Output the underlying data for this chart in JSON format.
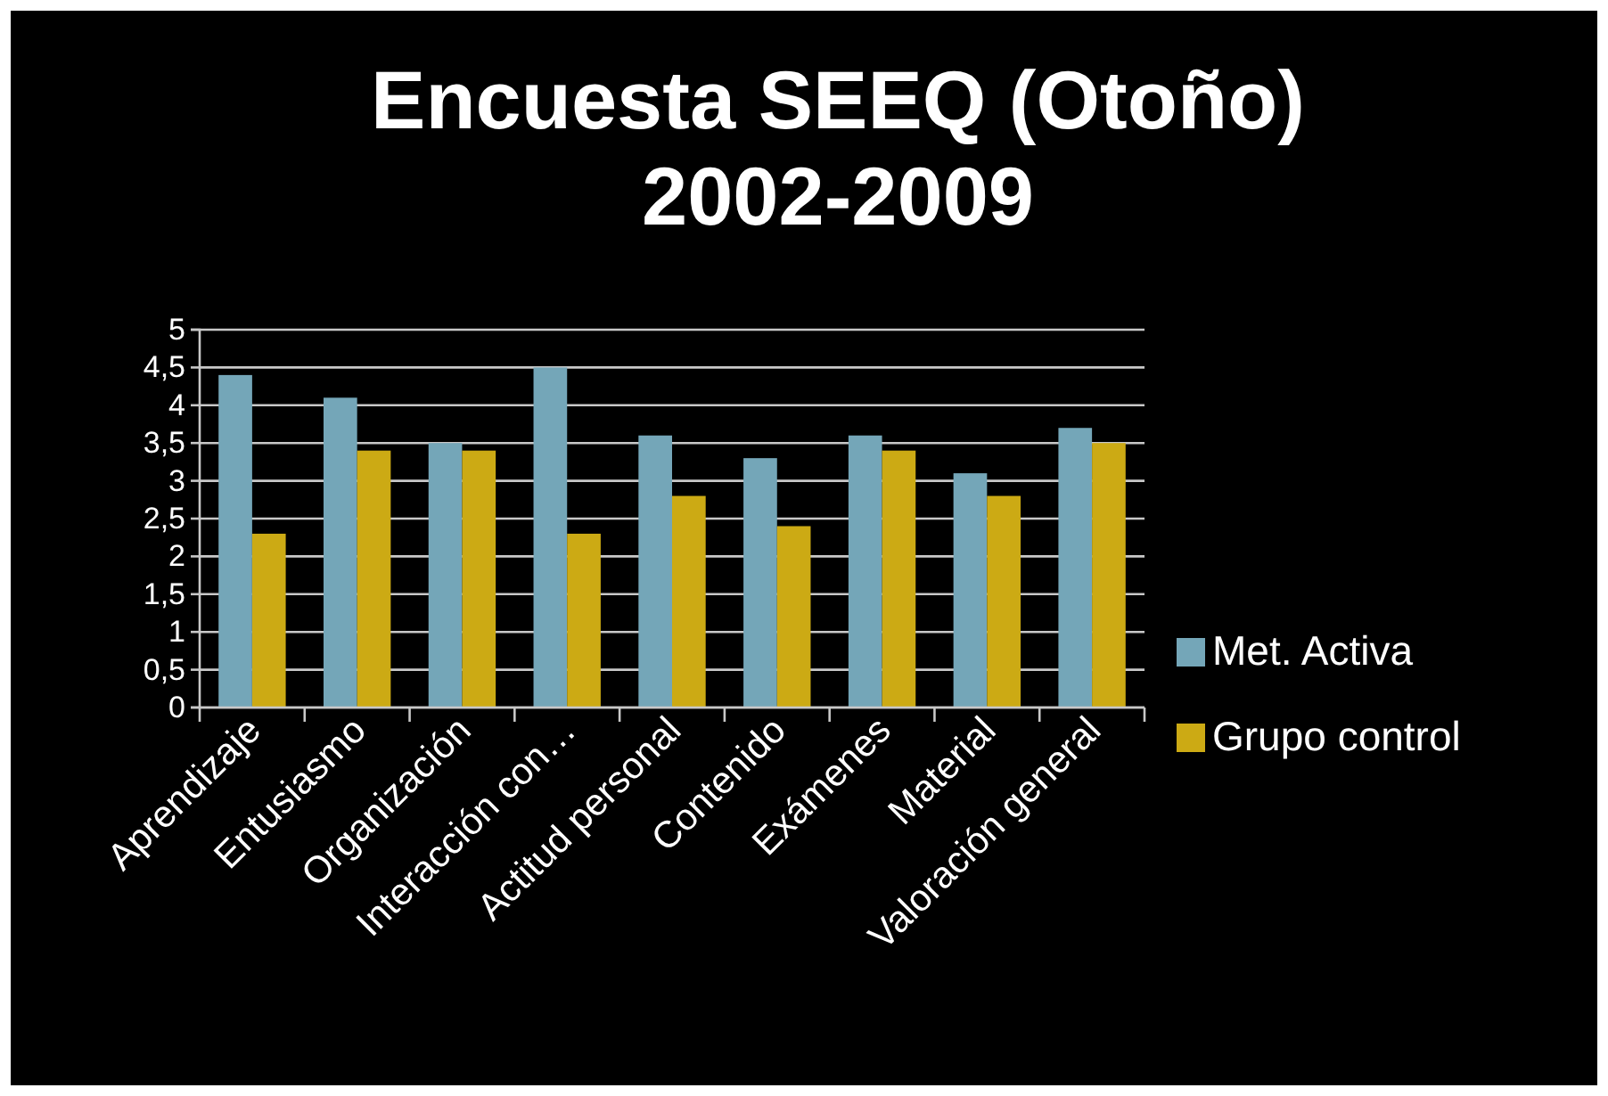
{
  "chart_data": {
    "type": "bar",
    "title": "Encuesta SEEQ (Otoño)\n2002-2009",
    "categories": [
      "Aprendizaje",
      "Entusiasmo",
      "Organización",
      "Interacción con…",
      "Actitud personal",
      "Contenido",
      "Exámenes",
      "Material",
      "Valoración general"
    ],
    "series": [
      {
        "name": "Met. Activa",
        "color": "#74a6b8",
        "values": [
          4.4,
          4.1,
          3.5,
          4.5,
          3.6,
          3.3,
          3.6,
          3.1,
          3.7
        ]
      },
      {
        "name": "Grupo control",
        "color": "#ccaa14",
        "values": [
          2.3,
          3.4,
          3.4,
          2.3,
          2.8,
          2.4,
          3.4,
          2.8,
          3.5
        ]
      }
    ],
    "ylim": [
      0,
      5
    ],
    "yticks": [
      0,
      {
        "value": 0.5,
        "label": "0,5"
      },
      1,
      {
        "value": 1.5,
        "label": "1,5"
      },
      2,
      {
        "value": 2.5,
        "label": "2,5"
      },
      3,
      {
        "value": 3.5,
        "label": "3,5"
      },
      4,
      {
        "value": 4.5,
        "label": "4,5"
      },
      5
    ],
    "grid": "y",
    "legend": "right"
  }
}
